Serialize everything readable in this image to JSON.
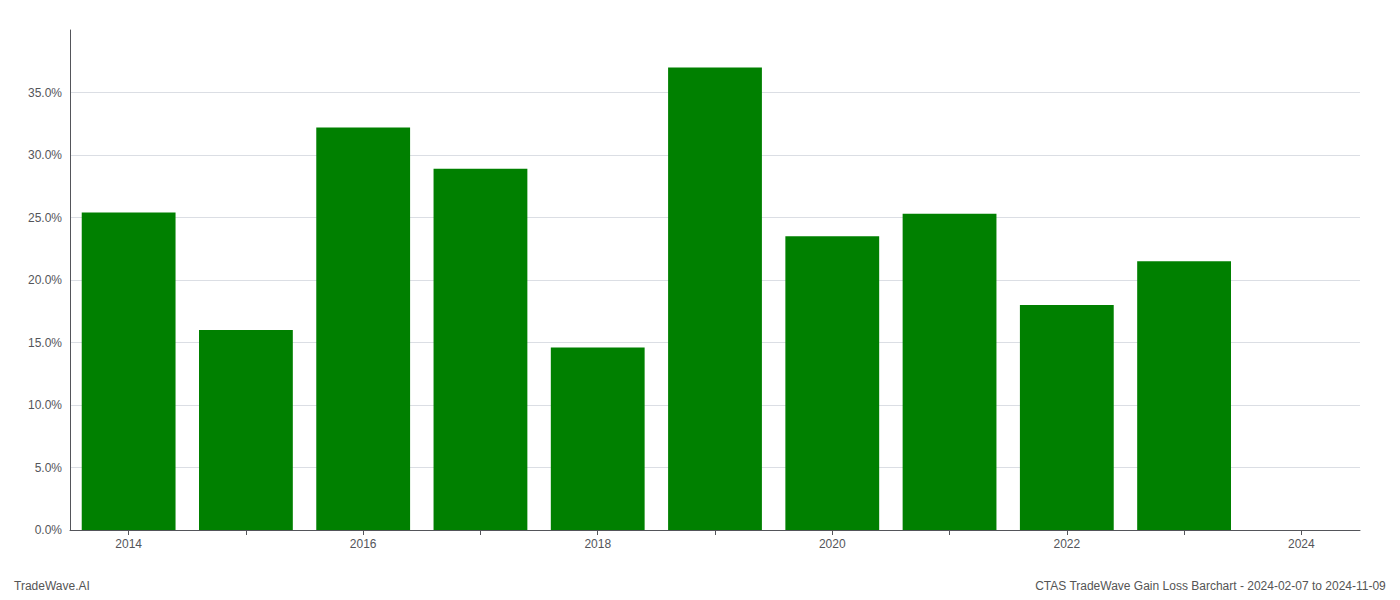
{
  "chart_data": {
    "type": "bar",
    "categories": [
      "2014",
      null,
      "2016",
      null,
      "2018",
      null,
      "2020",
      null,
      "2022",
      null,
      "2024"
    ],
    "values": [
      0.254,
      0.16,
      0.322,
      0.289,
      0.146,
      0.37,
      0.235,
      0.253,
      0.18,
      0.215,
      0.0
    ],
    "color": "#008000",
    "ylim": [
      0,
      0.4
    ],
    "yticks": [
      {
        "value": 0.0,
        "label": "0.0%"
      },
      {
        "value": 0.05,
        "label": "5.0%"
      },
      {
        "value": 0.1,
        "label": "10.0%"
      },
      {
        "value": 0.15,
        "label": "15.0%"
      },
      {
        "value": 0.2,
        "label": "20.0%"
      },
      {
        "value": 0.25,
        "label": "25.0%"
      },
      {
        "value": 0.3,
        "label": "30.0%"
      },
      {
        "value": 0.35,
        "label": "35.0%"
      }
    ],
    "grid": true,
    "annotations": [
      "TradeWave.AI",
      "CTAS TradeWave Gain Loss Barchart - 2024-02-07 to 2024-11-09"
    ]
  }
}
